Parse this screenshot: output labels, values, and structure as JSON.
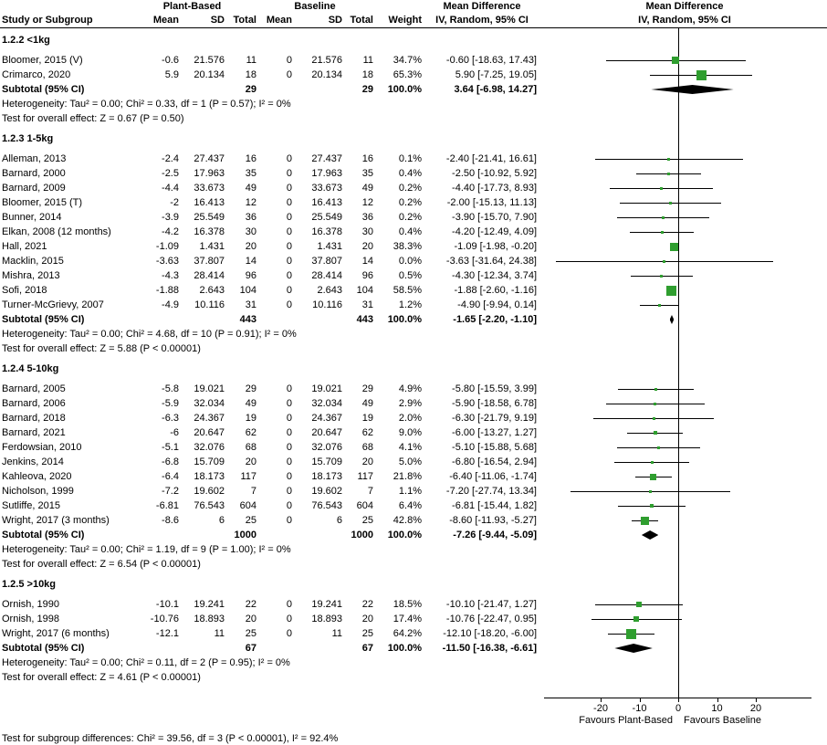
{
  "header": {
    "group1": "Plant-Based",
    "group2": "Baseline",
    "col_study": "Study or Subgroup",
    "col_mean": "Mean",
    "col_sd": "SD",
    "col_total": "Total",
    "col_weight": "Weight",
    "md_title": "Mean Difference",
    "md_subtitle": "IV, Random, 95% CI"
  },
  "chart_data": {
    "type": "forest",
    "effect_label": "Mean Difference",
    "method_label": "IV, Random, 95% CI",
    "marker_color": "#2f9e2f",
    "axis": {
      "ticks": [
        -20,
        -10,
        0,
        10,
        20
      ],
      "min": -34.5,
      "max": 34.5,
      "favours_left": "Favours Plant-Based",
      "favours_right": "Favours Baseline"
    },
    "subgroups": [
      {
        "label": "1.2.2 <1kg",
        "studies": [
          {
            "name": "Bloomer, 2015 (V)",
            "mean1": "-0.6",
            "sd1": "21.576",
            "n1": "11",
            "mean2": "0",
            "sd2": "21.576",
            "n2": "11",
            "weight": "34.7%",
            "weight_pct": 34.7,
            "ci_text": "-0.60 [-18.63, 17.43]",
            "est": -0.6,
            "lo": -18.63,
            "hi": 17.43
          },
          {
            "name": "Crimarco, 2020",
            "mean1": "5.9",
            "sd1": "20.134",
            "n1": "18",
            "mean2": "0",
            "sd2": "20.134",
            "n2": "18",
            "weight": "65.3%",
            "weight_pct": 65.3,
            "ci_text": "5.90 [-7.25, 19.05]",
            "est": 5.9,
            "lo": -7.25,
            "hi": 19.05
          }
        ],
        "subtotal": {
          "label": "Subtotal (95% CI)",
          "n1": "29",
          "n2": "29",
          "weight": "100.0%",
          "ci_text": "3.64 [-6.98, 14.27]",
          "est": 3.64,
          "lo": -6.98,
          "hi": 14.27
        },
        "heterogeneity": "Heterogeneity: Tau² = 0.00; Chi² = 0.33, df = 1 (P = 0.57); I² = 0%",
        "overall_effect": "Test for overall effect: Z = 0.67 (P = 0.50)"
      },
      {
        "label": "1.2.3 1-5kg",
        "studies": [
          {
            "name": "Alleman, 2013",
            "mean1": "-2.4",
            "sd1": "27.437",
            "n1": "16",
            "mean2": "0",
            "sd2": "27.437",
            "n2": "16",
            "weight": "0.1%",
            "weight_pct": 0.1,
            "ci_text": "-2.40 [-21.41, 16.61]",
            "est": -2.4,
            "lo": -21.41,
            "hi": 16.61
          },
          {
            "name": "Barnard, 2000",
            "mean1": "-2.5",
            "sd1": "17.963",
            "n1": "35",
            "mean2": "0",
            "sd2": "17.963",
            "n2": "35",
            "weight": "0.4%",
            "weight_pct": 0.4,
            "ci_text": "-2.50 [-10.92, 5.92]",
            "est": -2.5,
            "lo": -10.92,
            "hi": 5.92
          },
          {
            "name": "Barnard, 2009",
            "mean1": "-4.4",
            "sd1": "33.673",
            "n1": "49",
            "mean2": "0",
            "sd2": "33.673",
            "n2": "49",
            "weight": "0.2%",
            "weight_pct": 0.2,
            "ci_text": "-4.40 [-17.73, 8.93]",
            "est": -4.4,
            "lo": -17.73,
            "hi": 8.93
          },
          {
            "name": "Bloomer, 2015 (T)",
            "mean1": "-2",
            "sd1": "16.413",
            "n1": "12",
            "mean2": "0",
            "sd2": "16.413",
            "n2": "12",
            "weight": "0.2%",
            "weight_pct": 0.2,
            "ci_text": "-2.00 [-15.13, 11.13]",
            "est": -2.0,
            "lo": -15.13,
            "hi": 11.13
          },
          {
            "name": "Bunner, 2014",
            "mean1": "-3.9",
            "sd1": "25.549",
            "n1": "36",
            "mean2": "0",
            "sd2": "25.549",
            "n2": "36",
            "weight": "0.2%",
            "weight_pct": 0.2,
            "ci_text": "-3.90 [-15.70, 7.90]",
            "est": -3.9,
            "lo": -15.7,
            "hi": 7.9
          },
          {
            "name": "Elkan, 2008 (12 months)",
            "mean1": "-4.2",
            "sd1": "16.378",
            "n1": "30",
            "mean2": "0",
            "sd2": "16.378",
            "n2": "30",
            "weight": "0.4%",
            "weight_pct": 0.4,
            "ci_text": "-4.20 [-12.49, 4.09]",
            "est": -4.2,
            "lo": -12.49,
            "hi": 4.09
          },
          {
            "name": "Hall, 2021",
            "mean1": "-1.09",
            "sd1": "1.431",
            "n1": "20",
            "mean2": "0",
            "sd2": "1.431",
            "n2": "20",
            "weight": "38.3%",
            "weight_pct": 38.3,
            "ci_text": "-1.09 [-1.98, -0.20]",
            "est": -1.09,
            "lo": -1.98,
            "hi": -0.2
          },
          {
            "name": "Macklin, 2015",
            "mean1": "-3.63",
            "sd1": "37.807",
            "n1": "14",
            "mean2": "0",
            "sd2": "37.807",
            "n2": "14",
            "weight": "0.0%",
            "weight_pct": 0.0,
            "ci_text": "-3.63 [-31.64, 24.38]",
            "est": -3.63,
            "lo": -31.64,
            "hi": 24.38
          },
          {
            "name": "Mishra, 2013",
            "mean1": "-4.3",
            "sd1": "28.414",
            "n1": "96",
            "mean2": "0",
            "sd2": "28.414",
            "n2": "96",
            "weight": "0.5%",
            "weight_pct": 0.5,
            "ci_text": "-4.30 [-12.34, 3.74]",
            "est": -4.3,
            "lo": -12.34,
            "hi": 3.74
          },
          {
            "name": "Sofi, 2018",
            "mean1": "-1.88",
            "sd1": "2.643",
            "n1": "104",
            "mean2": "0",
            "sd2": "2.643",
            "n2": "104",
            "weight": "58.5%",
            "weight_pct": 58.5,
            "ci_text": "-1.88 [-2.60, -1.16]",
            "est": -1.88,
            "lo": -2.6,
            "hi": -1.16
          },
          {
            "name": "Turner-McGrievy, 2007",
            "mean1": "-4.9",
            "sd1": "10.116",
            "n1": "31",
            "mean2": "0",
            "sd2": "10.116",
            "n2": "31",
            "weight": "1.2%",
            "weight_pct": 1.2,
            "ci_text": "-4.90 [-9.94, 0.14]",
            "est": -4.9,
            "lo": -9.94,
            "hi": 0.14
          }
        ],
        "subtotal": {
          "label": "Subtotal (95% CI)",
          "n1": "443",
          "n2": "443",
          "weight": "100.0%",
          "ci_text": "-1.65 [-2.20, -1.10]",
          "est": -1.65,
          "lo": -2.2,
          "hi": -1.1
        },
        "heterogeneity": "Heterogeneity: Tau² = 0.00; Chi² = 4.68, df = 10 (P = 0.91); I² = 0%",
        "overall_effect": "Test for overall effect: Z = 5.88 (P < 0.00001)"
      },
      {
        "label": "1.2.4 5-10kg",
        "studies": [
          {
            "name": "Barnard, 2005",
            "mean1": "-5.8",
            "sd1": "19.021",
            "n1": "29",
            "mean2": "0",
            "sd2": "19.021",
            "n2": "29",
            "weight": "4.9%",
            "weight_pct": 4.9,
            "ci_text": "-5.80 [-15.59, 3.99]",
            "est": -5.8,
            "lo": -15.59,
            "hi": 3.99
          },
          {
            "name": "Barnard, 2006",
            "mean1": "-5.9",
            "sd1": "32.034",
            "n1": "49",
            "mean2": "0",
            "sd2": "32.034",
            "n2": "49",
            "weight": "2.9%",
            "weight_pct": 2.9,
            "ci_text": "-5.90 [-18.58, 6.78]",
            "est": -5.9,
            "lo": -18.58,
            "hi": 6.78
          },
          {
            "name": "Barnard, 2018",
            "mean1": "-6.3",
            "sd1": "24.367",
            "n1": "19",
            "mean2": "0",
            "sd2": "24.367",
            "n2": "19",
            "weight": "2.0%",
            "weight_pct": 2.0,
            "ci_text": "-6.30 [-21.79, 9.19]",
            "est": -6.3,
            "lo": -21.79,
            "hi": 9.19
          },
          {
            "name": "Barnard, 2021",
            "mean1": "-6",
            "sd1": "20.647",
            "n1": "62",
            "mean2": "0",
            "sd2": "20.647",
            "n2": "62",
            "weight": "9.0%",
            "weight_pct": 9.0,
            "ci_text": "-6.00 [-13.27, 1.27]",
            "est": -6.0,
            "lo": -13.27,
            "hi": 1.27
          },
          {
            "name": "Ferdowsian, 2010",
            "mean1": "-5.1",
            "sd1": "32.076",
            "n1": "68",
            "mean2": "0",
            "sd2": "32.076",
            "n2": "68",
            "weight": "4.1%",
            "weight_pct": 4.1,
            "ci_text": "-5.10 [-15.88, 5.68]",
            "est": -5.1,
            "lo": -15.88,
            "hi": 5.68
          },
          {
            "name": "Jenkins, 2014",
            "mean1": "-6.8",
            "sd1": "15.709",
            "n1": "20",
            "mean2": "0",
            "sd2": "15.709",
            "n2": "20",
            "weight": "5.0%",
            "weight_pct": 5.0,
            "ci_text": "-6.80 [-16.54, 2.94]",
            "est": -6.8,
            "lo": -16.54,
            "hi": 2.94
          },
          {
            "name": "Kahleova, 2020",
            "mean1": "-6.4",
            "sd1": "18.173",
            "n1": "117",
            "mean2": "0",
            "sd2": "18.173",
            "n2": "117",
            "weight": "21.8%",
            "weight_pct": 21.8,
            "ci_text": "-6.40 [-11.06, -1.74]",
            "est": -6.4,
            "lo": -11.06,
            "hi": -1.74
          },
          {
            "name": "Nicholson, 1999",
            "mean1": "-7.2",
            "sd1": "19.602",
            "n1": "7",
            "mean2": "0",
            "sd2": "19.602",
            "n2": "7",
            "weight": "1.1%",
            "weight_pct": 1.1,
            "ci_text": "-7.20 [-27.74, 13.34]",
            "est": -7.2,
            "lo": -27.74,
            "hi": 13.34
          },
          {
            "name": "Sutliffe, 2015",
            "mean1": "-6.81",
            "sd1": "76.543",
            "n1": "604",
            "mean2": "0",
            "sd2": "76.543",
            "n2": "604",
            "weight": "6.4%",
            "weight_pct": 6.4,
            "ci_text": "-6.81 [-15.44, 1.82]",
            "est": -6.81,
            "lo": -15.44,
            "hi": 1.82
          },
          {
            "name": "Wright, 2017 (3 months)",
            "mean1": "-8.6",
            "sd1": "6",
            "n1": "25",
            "mean2": "0",
            "sd2": "6",
            "n2": "25",
            "weight": "42.8%",
            "weight_pct": 42.8,
            "ci_text": "-8.60 [-11.93, -5.27]",
            "est": -8.6,
            "lo": -11.93,
            "hi": -5.27
          }
        ],
        "subtotal": {
          "label": "Subtotal (95% CI)",
          "n1": "1000",
          "n2": "1000",
          "weight": "100.0%",
          "ci_text": "-7.26 [-9.44, -5.09]",
          "est": -7.26,
          "lo": -9.44,
          "hi": -5.09
        },
        "heterogeneity": "Heterogeneity: Tau² = 0.00; Chi² = 1.19, df = 9 (P = 1.00); I² = 0%",
        "overall_effect": "Test for overall effect: Z = 6.54 (P < 0.00001)"
      },
      {
        "label": "1.2.5 >10kg",
        "studies": [
          {
            "name": "Ornish, 1990",
            "mean1": "-10.1",
            "sd1": "19.241",
            "n1": "22",
            "mean2": "0",
            "sd2": "19.241",
            "n2": "22",
            "weight": "18.5%",
            "weight_pct": 18.5,
            "ci_text": "-10.10 [-21.47, 1.27]",
            "est": -10.1,
            "lo": -21.47,
            "hi": 1.27
          },
          {
            "name": "Ornish, 1998",
            "mean1": "-10.76",
            "sd1": "18.893",
            "n1": "20",
            "mean2": "0",
            "sd2": "18.893",
            "n2": "20",
            "weight": "17.4%",
            "weight_pct": 17.4,
            "ci_text": "-10.76 [-22.47, 0.95]",
            "est": -10.76,
            "lo": -22.47,
            "hi": 0.95
          },
          {
            "name": "Wright, 2017 (6 months)",
            "mean1": "-12.1",
            "sd1": "11",
            "n1": "25",
            "mean2": "0",
            "sd2": "11",
            "n2": "25",
            "weight": "64.2%",
            "weight_pct": 64.2,
            "ci_text": "-12.10 [-18.20, -6.00]",
            "est": -12.1,
            "lo": -18.2,
            "hi": -6.0
          }
        ],
        "subtotal": {
          "label": "Subtotal (95% CI)",
          "n1": "67",
          "n2": "67",
          "weight": "100.0%",
          "ci_text": "-11.50 [-16.38, -6.61]",
          "est": -11.5,
          "lo": -16.38,
          "hi": -6.61
        },
        "heterogeneity": "Heterogeneity: Tau² = 0.00; Chi² = 0.11, df = 2 (P = 0.95); I² = 0%",
        "overall_effect": "Test for overall effect: Z = 4.61 (P < 0.00001)"
      }
    ],
    "subgroup_difference": "Test for subgroup differences: Chi² = 39.56, df = 3 (P < 0.00001), I² = 92.4%"
  }
}
